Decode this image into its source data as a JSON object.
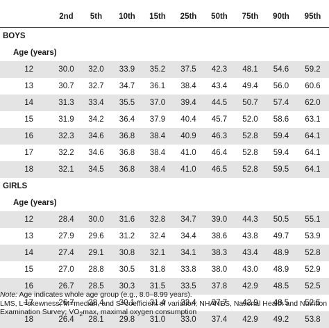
{
  "columns": [
    "",
    "2nd",
    "5th",
    "10th",
    "15th",
    "25th",
    "50th",
    "75th",
    "90th",
    "95th"
  ],
  "groups": [
    {
      "label": "BOYS",
      "subheader": "Age (years)",
      "rows": [
        {
          "age": "12",
          "values": [
            "30.0",
            "32.0",
            "33.9",
            "35.2",
            "37.5",
            "42.3",
            "48.1",
            "54.6",
            "59.2"
          ]
        },
        {
          "age": "13",
          "values": [
            "30.7",
            "32.7",
            "34.7",
            "36.1",
            "38.4",
            "43.4",
            "49.4",
            "56.0",
            "60.6"
          ]
        },
        {
          "age": "14",
          "values": [
            "31.3",
            "33.4",
            "35.5",
            "37.0",
            "39.4",
            "44.5",
            "50.7",
            "57.4",
            "62.0"
          ]
        },
        {
          "age": "15",
          "values": [
            "31.9",
            "34.2",
            "36.4",
            "37.9",
            "40.4",
            "45.7",
            "52.0",
            "58.6",
            "63.1"
          ]
        },
        {
          "age": "16",
          "values": [
            "32.3",
            "34.6",
            "36.8",
            "38.4",
            "40.9",
            "46.3",
            "52.8",
            "59.4",
            "64.1"
          ]
        },
        {
          "age": "17",
          "values": [
            "32.2",
            "34.6",
            "36.8",
            "38.4",
            "41.0",
            "46.4",
            "52.8",
            "59.4",
            "64.1"
          ]
        },
        {
          "age": "18",
          "values": [
            "32.1",
            "34.5",
            "36.8",
            "38.4",
            "41.0",
            "46.5",
            "52.8",
            "59.5",
            "64.1"
          ]
        }
      ]
    },
    {
      "label": "GIRLS",
      "subheader": "Age (years)",
      "rows": [
        {
          "age": "12",
          "values": [
            "28.4",
            "30.0",
            "31.6",
            "32.8",
            "34.7",
            "39.0",
            "44.3",
            "50.5",
            "55.1"
          ]
        },
        {
          "age": "13",
          "values": [
            "27.9",
            "29.6",
            "31.2",
            "32.4",
            "34.4",
            "38.6",
            "43.8",
            "49.7",
            "53.9"
          ]
        },
        {
          "age": "14",
          "values": [
            "27.4",
            "29.1",
            "30.8",
            "32.1",
            "34.1",
            "38.3",
            "43.4",
            "48.9",
            "52.8"
          ]
        },
        {
          "age": "15",
          "values": [
            "27.0",
            "28.8",
            "30.5",
            "31.8",
            "33.8",
            "38.0",
            "43.0",
            "48.9",
            "52.9"
          ]
        },
        {
          "age": "16",
          "values": [
            "26.7",
            "28.5",
            "30.3",
            "31.5",
            "33.5",
            "37.8",
            "42.9",
            "48.5",
            "52.5"
          ]
        },
        {
          "age": "17",
          "values": [
            "26.7",
            "28.4",
            "30.1",
            "31.4",
            "33.4",
            "37.7",
            "42.9",
            "48.5",
            "52.5"
          ]
        },
        {
          "age": "18",
          "values": [
            "26.4",
            "28.1",
            "29.8",
            "31.0",
            "33.0",
            "37.4",
            "42.9",
            "49.2",
            "53.8"
          ]
        }
      ]
    }
  ],
  "notes": {
    "note_label": "Note:",
    "note_text": " Age indicates whole age group (e.g., 8.0–8.99 years).",
    "abbrev_line1": "LMS, L=skewness, M=median, and S=coefficient of variation; NHANES, National Health and Nutrition",
    "abbrev_line2_pre": "Examination Survey; VO",
    "abbrev_line2_sub": "2",
    "abbrev_line2_post": "max, maximal oxygen consumption"
  },
  "colors": {
    "row_shade": "#e4e4e4",
    "rule": "#444444"
  }
}
